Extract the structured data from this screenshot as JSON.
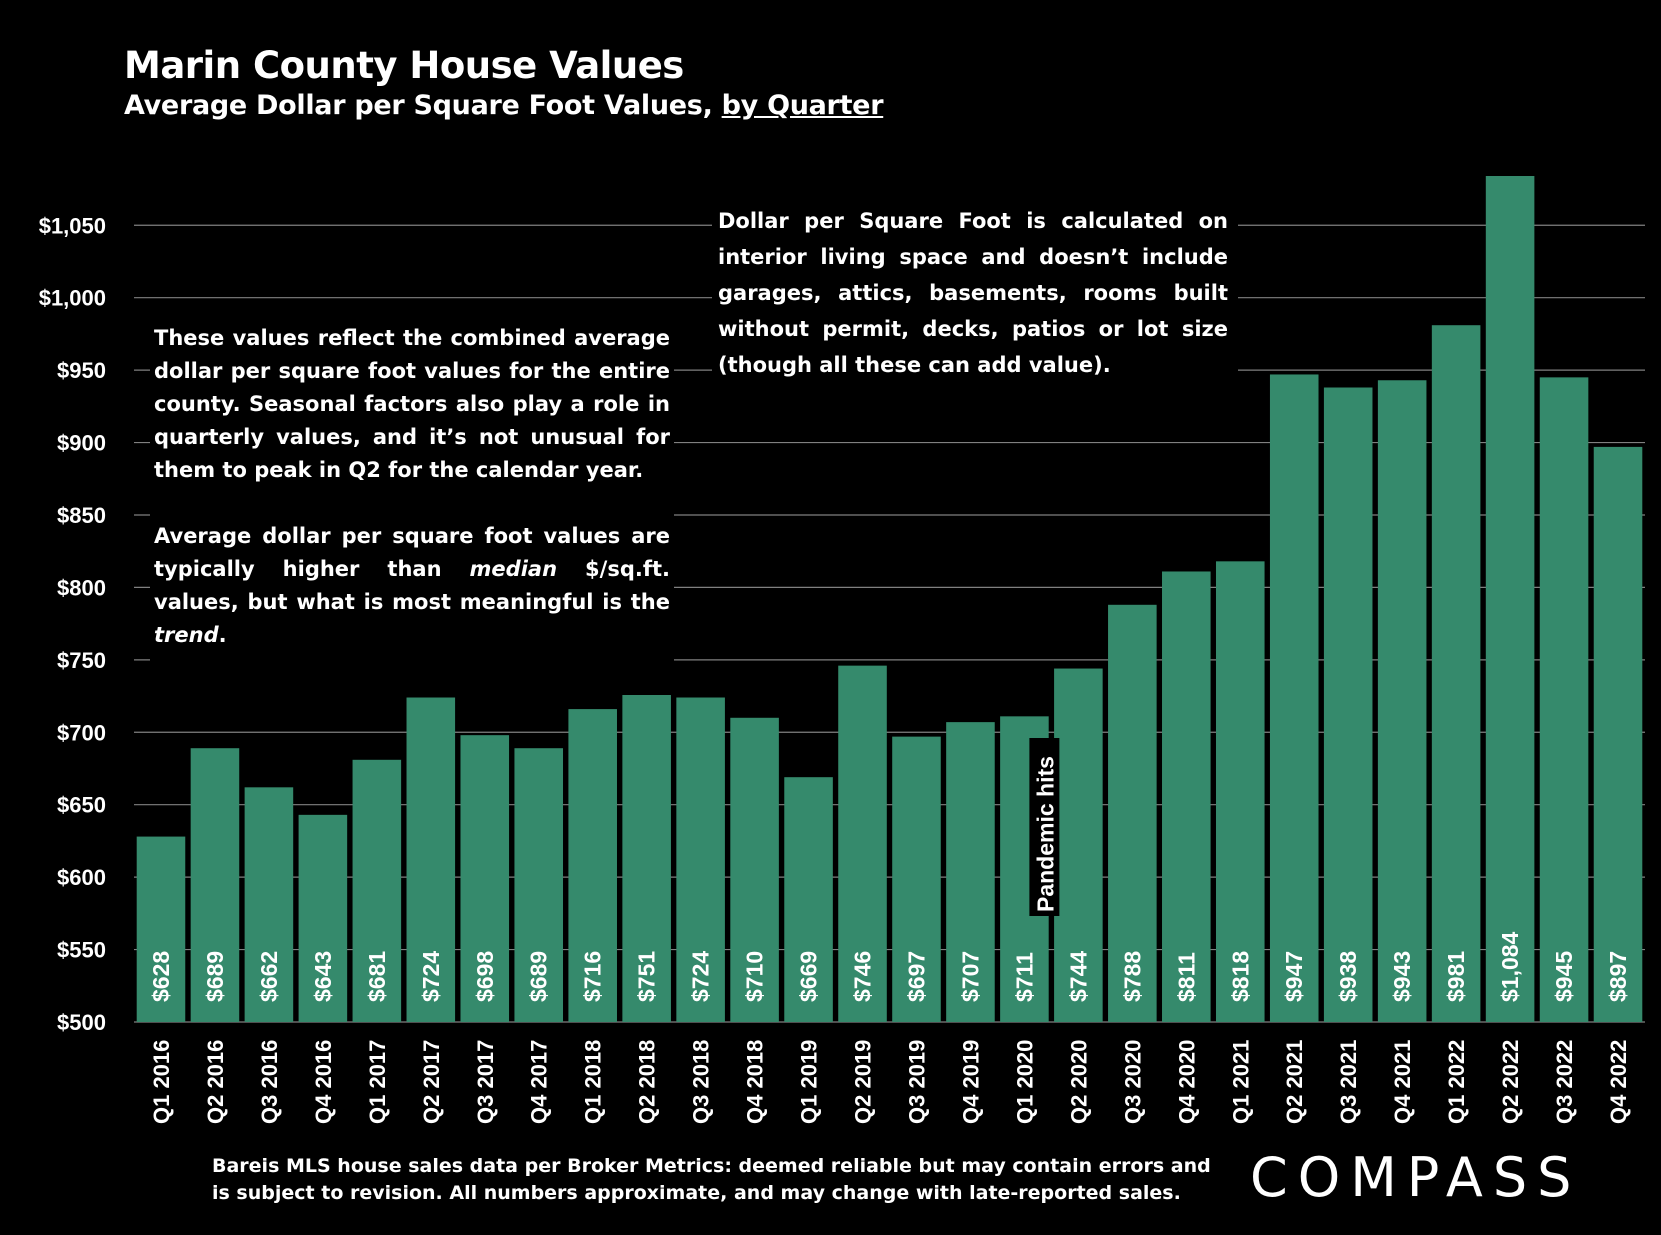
{
  "header": {
    "title": "Marin County House Values",
    "subtitle_main": "Average Dollar per Square Foot Values, ",
    "subtitle_link": "by Quarter"
  },
  "notes": {
    "left_p1": "These values reflect the combined average dollar per square foot values for the entire county. Seasonal factors also play a role in quarterly values, and it’s not unusual for them to peak in Q2 for the calendar year.",
    "left_p2_pre": "Average dollar per square foot values are typically higher than ",
    "left_p2_em1": "median",
    "left_p2_mid": " $/sq.ft. values, but what is most meaningful is the ",
    "left_p2_em2": "trend",
    "left_p2_end": ".",
    "right": "Dollar per Square Foot is calculated on interior living space and doesn’t include garages, attics, basements, rooms built without permit, decks, patios or lot size (though all these can add value)."
  },
  "annotation": "Pandemic hits",
  "footer": {
    "source_line1": "Bareis MLS house sales data per Broker Metrics:  deemed reliable but may contain errors and",
    "source_line2": "is subject to revision. All numbers approximate, and may change with late-reported sales.",
    "logo": "COMPASS"
  },
  "colors": {
    "bar": "#358a6c",
    "background": "#000000",
    "grid": "#808080",
    "text": "#ffffff"
  },
  "chart_data": {
    "type": "bar",
    "categories": [
      "Q1 2016",
      "Q2 2016",
      "Q3 2016",
      "Q4 2016",
      "Q1 2017",
      "Q2 2017",
      "Q3 2017",
      "Q4 2017",
      "Q1 2018",
      "Q2 2018",
      "Q3 2018",
      "Q4 2018",
      "Q1 2019",
      "Q2 2019",
      "Q3 2019",
      "Q4 2019",
      "Q1 2020",
      "Q2 2020",
      "Q3 2020",
      "Q4 2020",
      "Q1 2021",
      "Q2 2021",
      "Q3 2021",
      "Q4 2021",
      "Q1 2022",
      "Q2 2022",
      "Q3 2022",
      "Q4 2022"
    ],
    "values": [
      628,
      689,
      662,
      643,
      681,
      724,
      698,
      689,
      716,
      751,
      724,
      710,
      669,
      746,
      697,
      707,
      711,
      744,
      788,
      811,
      818,
      947,
      938,
      943,
      981,
      1084,
      945,
      897
    ],
    "labels": [
      "$628",
      "$689",
      "$662",
      "$643",
      "$681",
      "$724",
      "$698",
      "$689",
      "$716",
      "$751",
      "$724",
      "$710",
      "$669",
      "$746",
      "$697",
      "$707",
      "$711",
      "$744",
      "$788",
      "$811",
      "$818",
      "$947",
      "$938",
      "$943",
      "$981",
      "$1,084",
      "$945",
      "$897"
    ],
    "ylim": [
      500,
      1084
    ],
    "yticks": [
      500,
      550,
      600,
      650,
      700,
      750,
      800,
      850,
      900,
      950,
      1000,
      1050
    ],
    "ytick_labels": [
      "$500",
      "$550",
      "$600",
      "$650",
      "$700",
      "$750",
      "$800",
      "$850",
      "$900",
      "$950",
      "$1,000",
      "$1,050"
    ],
    "grid": true,
    "legend": "none"
  }
}
